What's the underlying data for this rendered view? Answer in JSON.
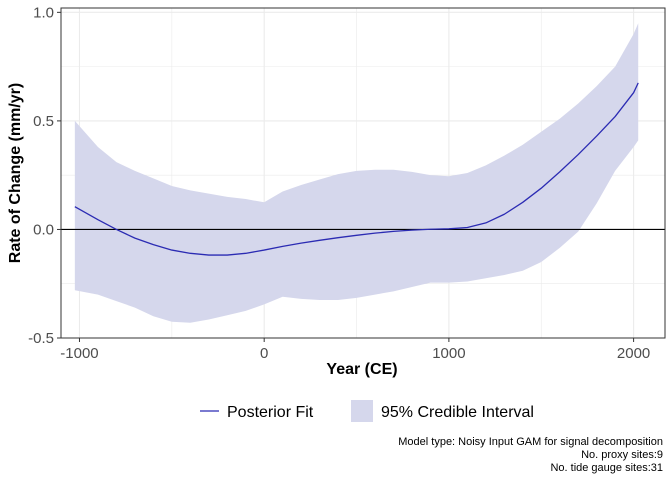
{
  "chart_data": {
    "type": "line",
    "title": "",
    "xlabel": "Year (CE)",
    "ylabel": "Rate of Change (mm/yr)",
    "xlim": [
      -1100,
      2170
    ],
    "ylim": [
      -0.5,
      1.02
    ],
    "x_ticks": [
      -1000,
      0,
      1000,
      2000
    ],
    "x_tick_labels": [
      "-1000",
      "0",
      "1000",
      "2000"
    ],
    "y_ticks": [
      -0.5,
      0.0,
      0.5,
      1.0
    ],
    "y_tick_labels": [
      "-0.5",
      "0.0",
      "0.5",
      "1.0"
    ],
    "grid": true,
    "reference_line_y": 0,
    "legend_position": "bottom",
    "colors": {
      "fit": "#2b2bb3",
      "band": "#d5d7ec",
      "reference": "#000000",
      "grid": "#ebebeb"
    },
    "series": [
      {
        "name": "Posterior Fit",
        "x": [
          -1025,
          -900,
          -800,
          -700,
          -600,
          -500,
          -400,
          -300,
          -200,
          -100,
          0,
          100,
          200,
          300,
          400,
          500,
          600,
          700,
          800,
          900,
          1000,
          1100,
          1200,
          1300,
          1400,
          1500,
          1600,
          1700,
          1800,
          1900,
          2000,
          2025
        ],
        "y": [
          0.105,
          0.045,
          0.0,
          -0.04,
          -0.07,
          -0.095,
          -0.11,
          -0.118,
          -0.118,
          -0.11,
          -0.095,
          -0.078,
          -0.063,
          -0.05,
          -0.038,
          -0.027,
          -0.017,
          -0.009,
          -0.003,
          0.001,
          0.003,
          0.009,
          0.03,
          0.07,
          0.125,
          0.19,
          0.265,
          0.345,
          0.43,
          0.52,
          0.63,
          0.675
        ]
      },
      {
        "name": "95% Credible Interval",
        "x": [
          -1025,
          -900,
          -800,
          -700,
          -600,
          -500,
          -400,
          -300,
          -200,
          -100,
          0,
          100,
          200,
          300,
          400,
          500,
          600,
          700,
          800,
          900,
          1000,
          1100,
          1200,
          1300,
          1400,
          1500,
          1600,
          1700,
          1800,
          1900,
          2000,
          2025
        ],
        "upper": [
          0.5,
          0.38,
          0.31,
          0.27,
          0.235,
          0.2,
          0.18,
          0.165,
          0.15,
          0.14,
          0.125,
          0.175,
          0.205,
          0.23,
          0.255,
          0.27,
          0.275,
          0.275,
          0.265,
          0.25,
          0.245,
          0.26,
          0.295,
          0.34,
          0.39,
          0.45,
          0.51,
          0.58,
          0.66,
          0.75,
          0.9,
          0.95
        ],
        "lower": [
          -0.28,
          -0.3,
          -0.33,
          -0.36,
          -0.4,
          -0.425,
          -0.43,
          -0.415,
          -0.395,
          -0.375,
          -0.345,
          -0.31,
          -0.32,
          -0.325,
          -0.325,
          -0.315,
          -0.3,
          -0.285,
          -0.265,
          -0.245,
          -0.245,
          -0.24,
          -0.225,
          -0.21,
          -0.19,
          -0.15,
          -0.085,
          -0.01,
          0.12,
          0.27,
          0.38,
          0.41
        ]
      }
    ],
    "caption": [
      "Model type: Noisy Input GAM for signal decomposition",
      "No. proxy sites:9",
      "No. tide gauge sites:31"
    ]
  }
}
